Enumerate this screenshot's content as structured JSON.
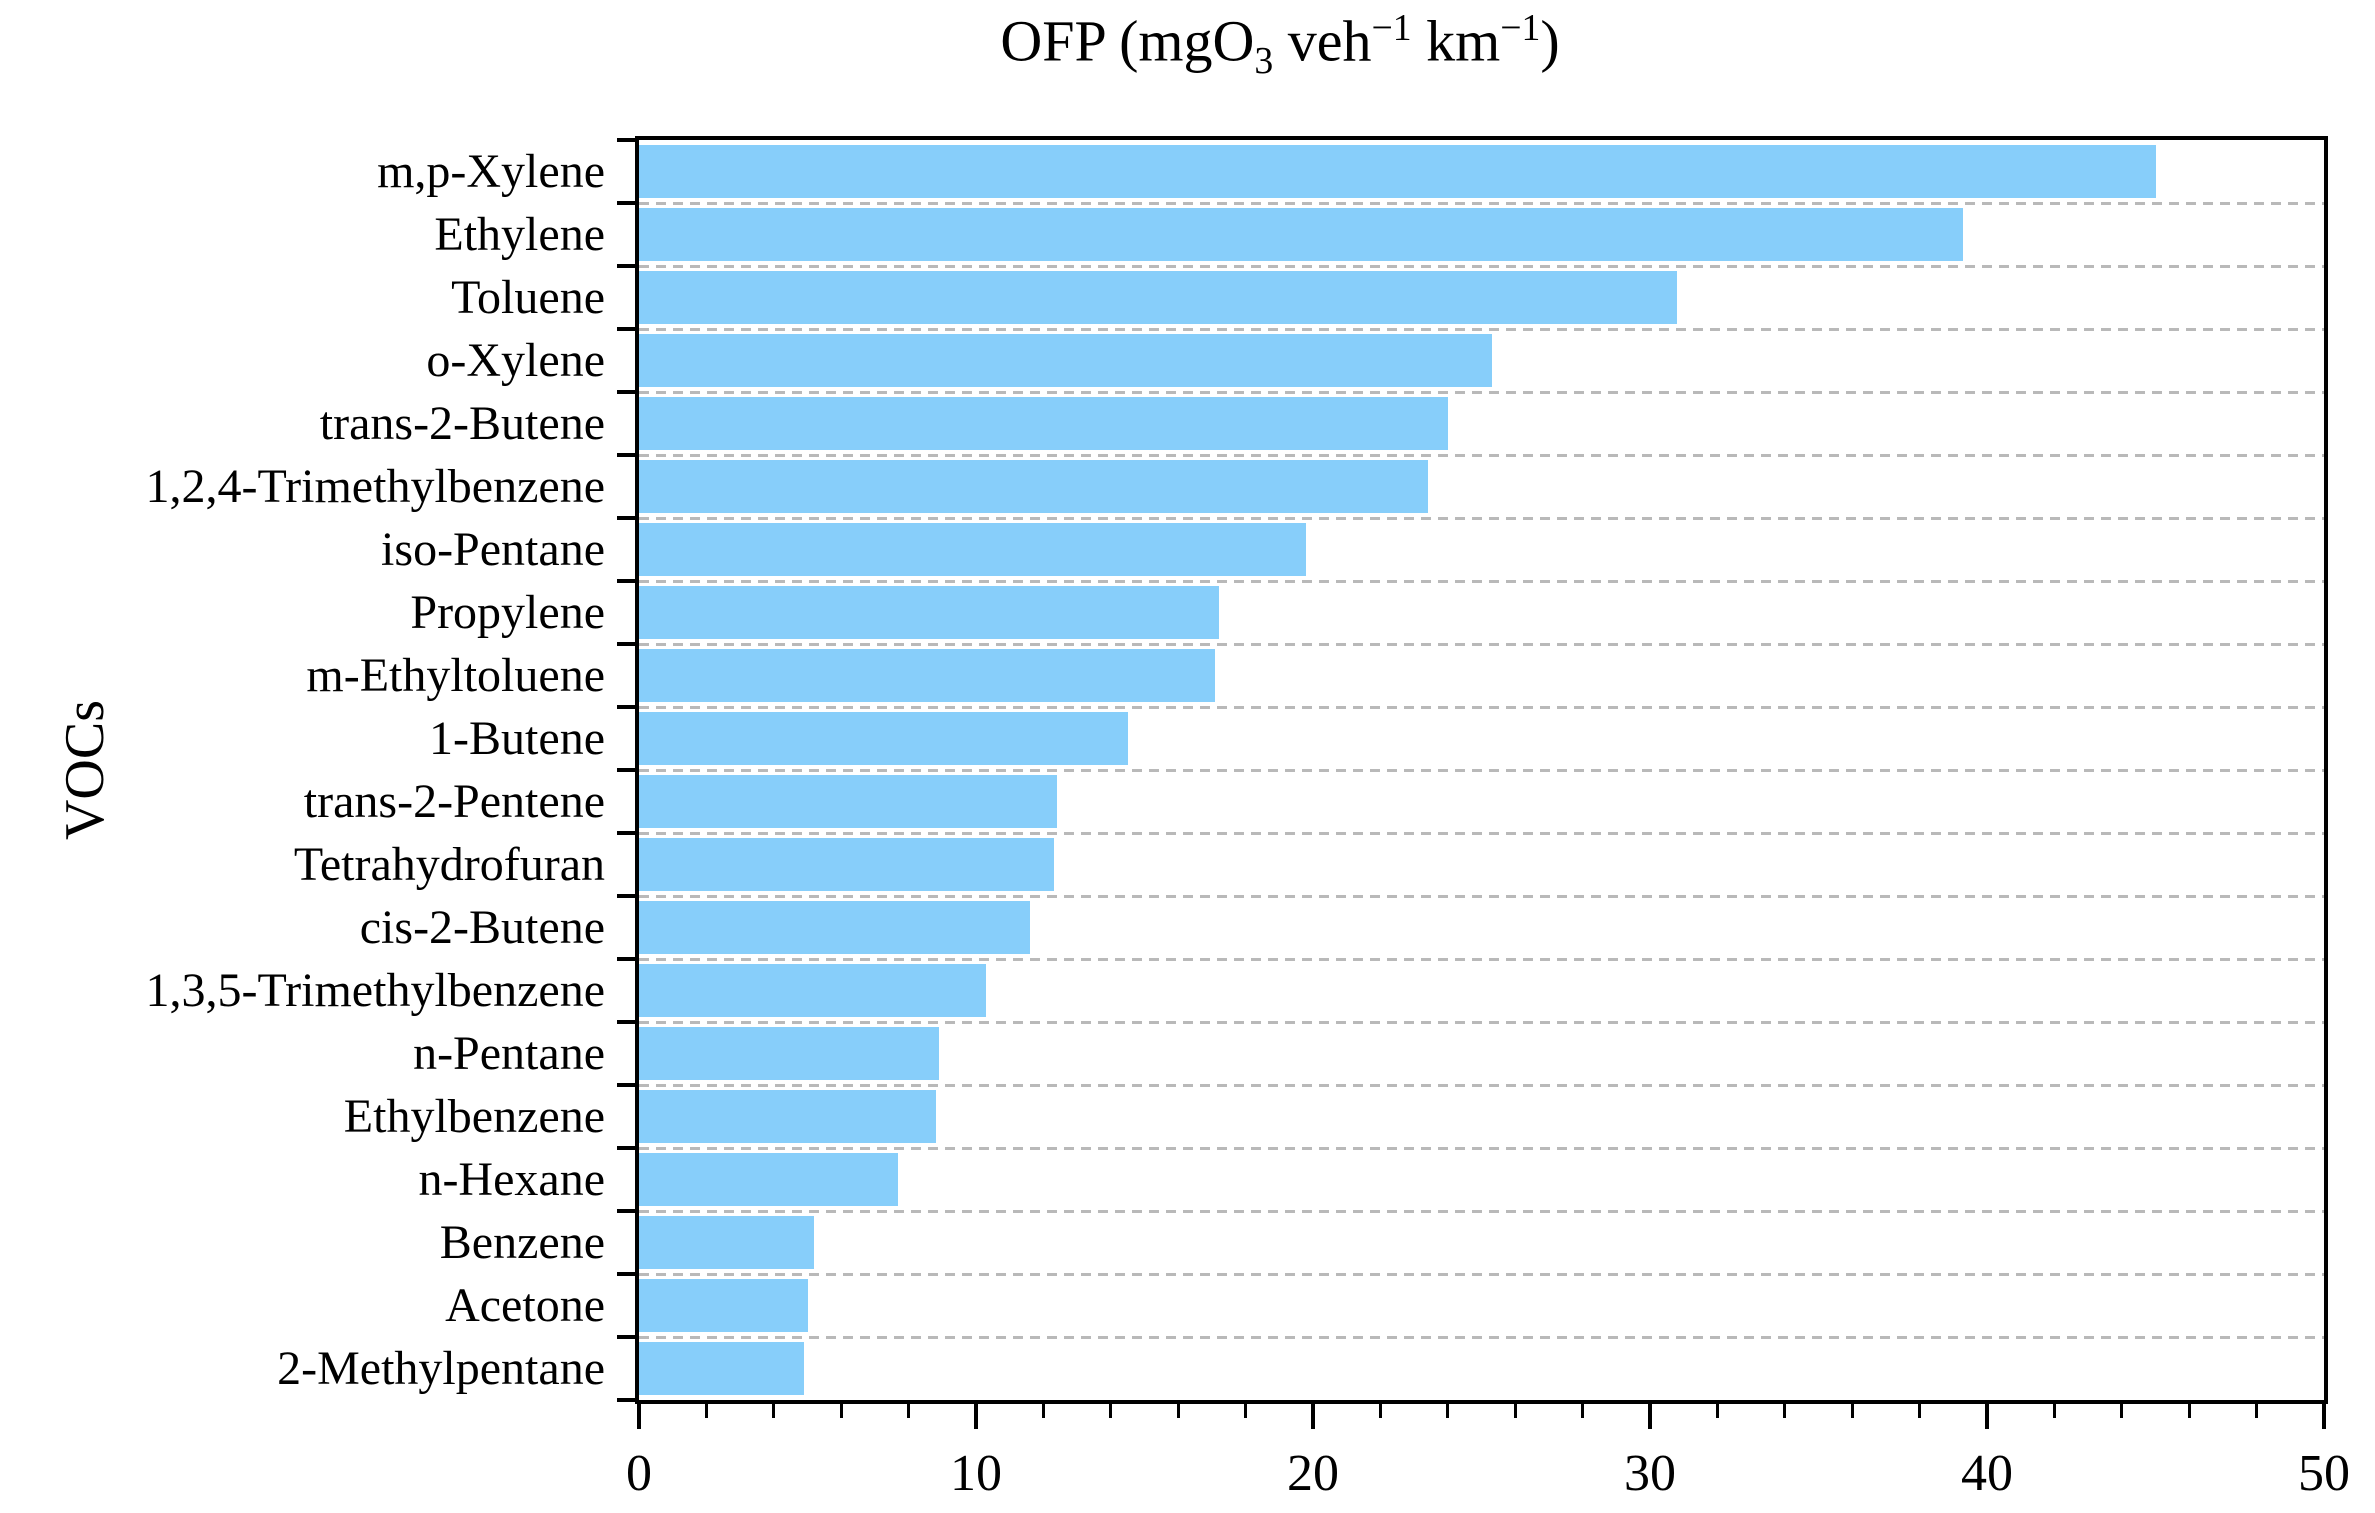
{
  "title": {
    "p1": "OFP (mgO",
    "sub1": "3",
    "p2": " veh",
    "sup1": "−1",
    "p3": " km",
    "sup2": "−1",
    "p4": ")"
  },
  "chart_data": {
    "type": "bar",
    "orientation": "horizontal",
    "title": "OFP (mgO3 veh-1 km-1)",
    "ylabel": "VOCs",
    "xlabel": "",
    "xlim": [
      0,
      50
    ],
    "x_major_ticks": [
      0,
      10,
      20,
      30,
      40,
      50
    ],
    "x_major_tick_labels": [
      "0",
      "10",
      "20",
      "30",
      "40",
      "50"
    ],
    "x_minor_tick_step": 2,
    "grid": "horizontal-dashed",
    "legend": "none",
    "bar_color": "#87CEFA",
    "frame_color": "#000000",
    "gridline_color": "#b9b9b9",
    "categories": [
      "m,p-Xylene",
      "Ethylene",
      "Toluene",
      "o-Xylene",
      "trans-2-Butene",
      "1,2,4-Trimethylbenzene",
      "iso-Pentane",
      "Propylene",
      "m-Ethyltoluene",
      "1-Butene",
      "trans-2-Pentene",
      "Tetrahydrofuran",
      "cis-2-Butene",
      "1,3,5-Trimethylbenzene",
      "n-Pentane",
      "Ethylbenzene",
      "n-Hexane",
      "Benzene",
      "Acetone",
      "2-Methylpentane"
    ],
    "values": [
      45.0,
      39.3,
      30.8,
      25.3,
      24.0,
      23.4,
      19.8,
      17.2,
      17.1,
      14.5,
      12.4,
      12.3,
      11.6,
      10.3,
      8.9,
      8.8,
      7.7,
      5.2,
      5.0,
      4.9
    ]
  }
}
